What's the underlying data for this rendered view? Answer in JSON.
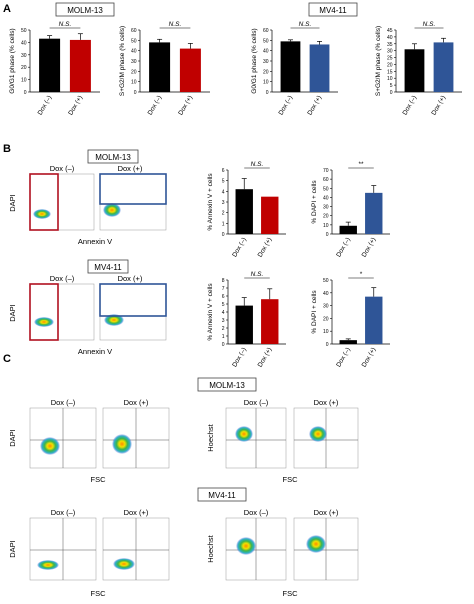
{
  "panels": {
    "A": "A",
    "B": "B",
    "C": "C"
  },
  "cell_lines": {
    "molm": "MOLM-13",
    "mv": "MV4-11"
  },
  "conditions": {
    "neg": "Dox (–)",
    "pos": "Dox (+)"
  },
  "axis_labels": {
    "dapi": "DAPI",
    "annexin": "Annexin V",
    "fsc": "FSC",
    "hoechst": "Hoechst"
  },
  "colors": {
    "dox_neg": "#000000",
    "molm_dox_pos": "#c00000",
    "mv_dox_pos": "#2f5597",
    "gate_red": "#b01020",
    "gate_blue": "#2f5597"
  },
  "chart_data": [
    {
      "id": "A1",
      "type": "bar",
      "categories": [
        "Dox (–)",
        "Dox (+)"
      ],
      "values": [
        43,
        42
      ],
      "errors": [
        2.5,
        5
      ],
      "ylabel": "G0/G1 phase (% cells)",
      "ylim": [
        0,
        50
      ],
      "yticks": [
        0,
        10,
        20,
        30,
        40,
        50
      ],
      "significance": "N.S."
    },
    {
      "id": "A2",
      "type": "bar",
      "categories": [
        "Dox (–)",
        "Dox (+)"
      ],
      "values": [
        48,
        42
      ],
      "errors": [
        3,
        5
      ],
      "ylabel": "S+G2/M phase (% cells)",
      "ylim": [
        0,
        60
      ],
      "yticks": [
        0,
        10,
        20,
        30,
        40,
        50,
        60
      ],
      "significance": "N.S."
    },
    {
      "id": "A3",
      "type": "bar",
      "categories": [
        "Dox (–)",
        "Dox (+)"
      ],
      "values": [
        49,
        46
      ],
      "errors": [
        1.5,
        3
      ],
      "ylabel": "G0/G1 phase (% cells)",
      "ylim": [
        0,
        60
      ],
      "yticks": [
        0,
        10,
        20,
        30,
        40,
        50,
        60
      ],
      "significance": "N.S."
    },
    {
      "id": "A4",
      "type": "bar",
      "categories": [
        "Dox (–)",
        "Dox (+)"
      ],
      "values": [
        31,
        36
      ],
      "errors": [
        4,
        3
      ],
      "ylabel": "S+G2/M phase (% cells)",
      "ylim": [
        0,
        45
      ],
      "yticks": [
        0,
        5,
        10,
        15,
        20,
        25,
        30,
        35,
        40,
        45
      ],
      "significance": "N.S."
    },
    {
      "id": "B1",
      "type": "bar",
      "categories": [
        "Dox (–)",
        "Dox (+)"
      ],
      "values": [
        4.2,
        3.5
      ],
      "errors": [
        1,
        0
      ],
      "ylabel": "% Annexin V + cells",
      "ylim": [
        0,
        6
      ],
      "yticks": [
        0,
        1,
        2,
        3,
        4,
        5,
        6
      ],
      "significance": "N.S."
    },
    {
      "id": "B2",
      "type": "bar",
      "categories": [
        "Dox (–)",
        "Dox (+)"
      ],
      "values": [
        9,
        45
      ],
      "errors": [
        4,
        8
      ],
      "ylabel": "% DAPI + cells",
      "ylim": [
        0,
        70
      ],
      "yticks": [
        0,
        10,
        20,
        30,
        40,
        50,
        60,
        70
      ],
      "significance": "**"
    },
    {
      "id": "B3",
      "type": "bar",
      "categories": [
        "Dox (–)",
        "Dox (+)"
      ],
      "values": [
        4.8,
        5.6
      ],
      "errors": [
        1,
        1.3
      ],
      "ylabel": "% Annexin V + cells",
      "ylim": [
        0,
        8
      ],
      "yticks": [
        0,
        1,
        2,
        3,
        4,
        5,
        6,
        7,
        8
      ],
      "significance": "N.S."
    },
    {
      "id": "B4",
      "type": "bar",
      "categories": [
        "Dox (–)",
        "Dox (+)"
      ],
      "values": [
        3,
        37
      ],
      "errors": [
        1,
        7
      ],
      "ylabel": "% DAPI + cells",
      "ylim": [
        0,
        50
      ],
      "yticks": [
        0,
        10,
        20,
        30,
        40,
        50
      ],
      "significance": "*"
    }
  ]
}
